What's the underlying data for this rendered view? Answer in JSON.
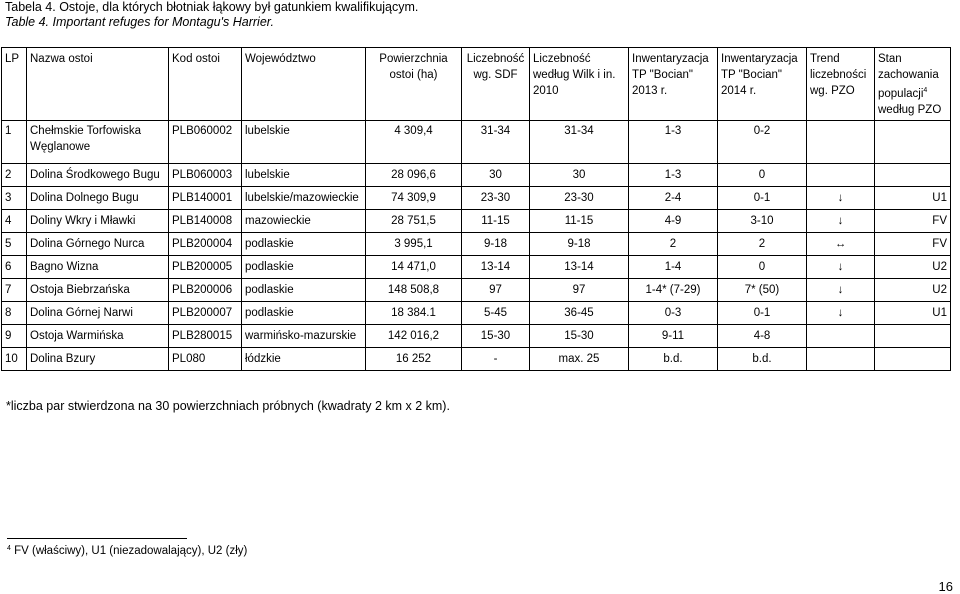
{
  "titles": {
    "pl": "Tabela 4. Ostoje, dla których błotniak łąkowy był gatunkiem kwalifikującym.",
    "en": "Table 4. Important refuges for Montagu's Harrier."
  },
  "headers": {
    "lp": "LP",
    "name": "Nazwa ostoi",
    "code": "Kod ostoi",
    "province": "Województwo",
    "area": "Powierzchnia ostoi (ha)",
    "sdf": "Liczebność wg. SDF",
    "wilk": "Liczebność według Wilk i in. 2010",
    "inv2013": "Inwentaryzacja TP \"Bocian\" 2013 r.",
    "inv2014": "Inwentaryzacja TP \"Bocian\" 2014 r.",
    "trend": "Trend liczebności wg. PZO",
    "state": "Stan zachowania populacji",
    "state_sup": "4",
    "state_suffix": " według PZO"
  },
  "rows": [
    {
      "lp": "1",
      "name": "Chełmskie Torfowiska Węglanowe",
      "code": "PLB060002",
      "province": "lubelskie",
      "area": "4 309,4",
      "sdf": "31-34",
      "wilk": "31-34",
      "inv2013": "1-3",
      "inv2014": "0-2",
      "trend": "",
      "state": ""
    },
    {
      "lp": "2",
      "name": "Dolina Środkowego Bugu",
      "code": "PLB060003",
      "province": "lubelskie",
      "area": "28 096,6",
      "sdf": "30",
      "wilk": "30",
      "inv2013": "1-3",
      "inv2014": "0",
      "trend": "",
      "state": ""
    },
    {
      "lp": "3",
      "name": "Dolina Dolnego Bugu",
      "code": "PLB140001",
      "province": "lubelskie/mazowieckie",
      "area": "74 309,9",
      "sdf": "23-30",
      "wilk": "23-30",
      "inv2013": "2-4",
      "inv2014": "0-1",
      "trend": "↓",
      "state": "U1"
    },
    {
      "lp": "4",
      "name": "Doliny Wkry i Mławki",
      "code": "PLB140008",
      "province": "mazowieckie",
      "area": "28 751,5",
      "sdf": "11-15",
      "wilk": "11-15",
      "inv2013": "4-9",
      "inv2014": "3-10",
      "trend": "↓",
      "state": "FV"
    },
    {
      "lp": "5",
      "name": "Dolina Górnego Nurca",
      "code": "PLB200004",
      "province": "podlaskie",
      "area": "3 995,1",
      "sdf": "9-18",
      "wilk": "9-18",
      "inv2013": "2",
      "inv2014": "2",
      "trend": "↔",
      "state": "FV"
    },
    {
      "lp": "6",
      "name": "Bagno Wizna",
      "code": "PLB200005",
      "province": "podlaskie",
      "area": "14 471,0",
      "sdf": "13-14",
      "wilk": "13-14",
      "inv2013": "1-4",
      "inv2014": "0",
      "trend": "↓",
      "state": "U2"
    },
    {
      "lp": "7",
      "name": "Ostoja Biebrzańska",
      "code": "PLB200006",
      "province": "podlaskie",
      "area": "148 508,8",
      "sdf": "97",
      "wilk": "97",
      "inv2013": "1-4* (7-29)",
      "inv2014": "7* (50)",
      "trend": "↓",
      "state": "U2"
    },
    {
      "lp": "8",
      "name": "Dolina Górnej Narwi",
      "code": "PLB200007",
      "province": "podlaskie",
      "area": "18 384.1",
      "sdf": "5-45",
      "wilk": "36-45",
      "inv2013": "0-3",
      "inv2014": "0-1",
      "trend": "↓",
      "state": "U1"
    },
    {
      "lp": "9",
      "name": "Ostoja Warmińska",
      "code": "PLB280015",
      "province": "warmińsko-mazurskie",
      "area": "142 016,2",
      "sdf": "15-30",
      "wilk": "15-30",
      "inv2013": "9-11",
      "inv2014": "4-8",
      "trend": "",
      "state": ""
    },
    {
      "lp": "10",
      "name": "Dolina Bzury",
      "code": "PL080",
      "province": "łódzkie",
      "area": "16 252",
      "sdf": "-",
      "wilk": "max. 25",
      "inv2013": "b.d.",
      "inv2014": "b.d.",
      "trend": "",
      "state": ""
    }
  ],
  "note": "*liczba par stwierdzona na 30 powierzchniach próbnych (kwadraty 2 km x 2 km).",
  "footnote": {
    "mark": "4",
    "text": " FV (właściwy), U1 (niezadowalający), U2 (zły)"
  },
  "page_number": "16"
}
